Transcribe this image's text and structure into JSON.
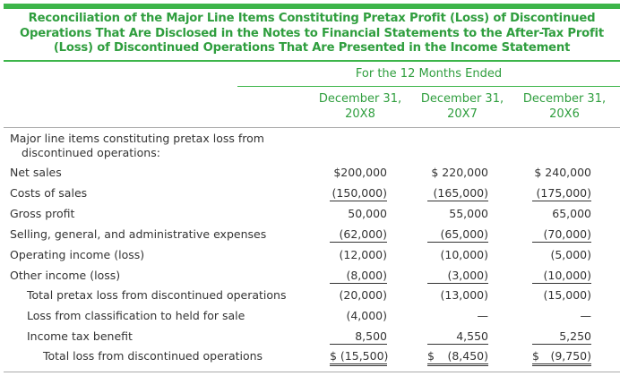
{
  "title": "Reconciliation of the Major Line Items Constituting Pretax Profit (Loss) of Discontinued Operations That Are Disclosed in the Notes to Financial Statements to the After-Tax Profit (Loss) of Discontinued Operations That Are Presented in the Income Statement",
  "title_lines": [
    "Reconciliation of the Major Line Items Constituting Pretax Profit (Loss) of Discontinued",
    "Operations That Are Disclosed in the Notes to Financial Statements to the After-Tax Profit",
    "(Loss) of Discontinued Operations That Are Presented in the Income Statement"
  ],
  "period_header": "For the 12 Months Ended",
  "columns": [
    {
      "line1": "December 31,",
      "line2": "20X8"
    },
    {
      "line1": "December 31,",
      "line2": "20X7"
    },
    {
      "line1": "December 31,",
      "line2": "20X6"
    }
  ],
  "section_label_line1": "Major line items constituting pretax loss from",
  "section_label_line2": "discontinued operations:",
  "rows": [
    {
      "label": "Net sales",
      "values": [
        "$200,000",
        "$ 220,000",
        "$ 240,000"
      ]
    },
    {
      "label": "Costs of sales",
      "values": [
        "(150,000)",
        "(165,000)",
        "(175,000)"
      ]
    },
    {
      "label": "Gross profit",
      "values": [
        "50,000",
        "55,000",
        "65,000"
      ]
    },
    {
      "label": "Selling, general, and administrative expenses",
      "values": [
        "(62,000)",
        "(65,000)",
        "(70,000)"
      ]
    },
    {
      "label": "Operating income (loss)",
      "values": [
        "(12,000)",
        "(10,000)",
        "(5,000)"
      ]
    },
    {
      "label": "Other income (loss)",
      "values": [
        "(8,000)",
        "(3,000)",
        "(10,000)"
      ]
    },
    {
      "label": "Total pretax loss from discontinued operations",
      "values": [
        "(20,000)",
        "(13,000)",
        "(15,000)"
      ]
    },
    {
      "label": "Loss from classification to held for sale",
      "values": [
        "(4,000)",
        "—",
        "—"
      ]
    },
    {
      "label": "Income tax benefit",
      "values": [
        "8,500",
        "4,550",
        "5,250"
      ]
    },
    {
      "label": "Total loss from discontinued operations",
      "values": [
        "$ (15,500)",
        "(8,450)",
        "(9,750)"
      ],
      "currency": [
        "",
        "$",
        "$"
      ]
    }
  ],
  "colors": {
    "accent": "#3db54a",
    "title_text": "#2f9e3e",
    "body_text": "#333333"
  }
}
